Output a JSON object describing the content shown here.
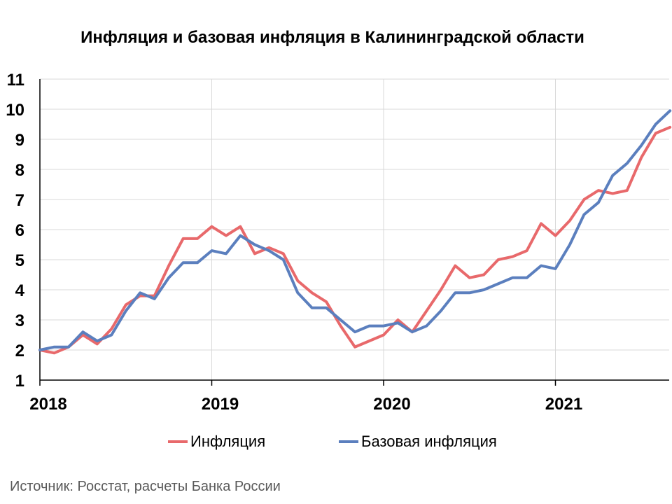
{
  "chart_data": {
    "type": "line",
    "title": "Инфляция и базовая инфляция в Калининградской области",
    "xlabel": "",
    "ylabel": "",
    "ylim": [
      1,
      11
    ],
    "yticks": [
      1,
      2,
      3,
      4,
      5,
      6,
      7,
      8,
      9,
      10,
      11
    ],
    "x_ticks": [
      "2018",
      "2019",
      "2020",
      "2021"
    ],
    "x_start": "2018-01",
    "x": [
      "2018-01",
      "2018-02",
      "2018-03",
      "2018-04",
      "2018-05",
      "2018-06",
      "2018-07",
      "2018-08",
      "2018-09",
      "2018-10",
      "2018-11",
      "2018-12",
      "2019-01",
      "2019-02",
      "2019-03",
      "2019-04",
      "2019-05",
      "2019-06",
      "2019-07",
      "2019-08",
      "2019-09",
      "2019-10",
      "2019-11",
      "2019-12",
      "2020-01",
      "2020-02",
      "2020-03",
      "2020-04",
      "2020-05",
      "2020-06",
      "2020-07",
      "2020-08",
      "2020-09",
      "2020-10",
      "2020-11",
      "2020-12",
      "2021-01",
      "2021-02",
      "2021-03",
      "2021-04",
      "2021-05",
      "2021-06",
      "2021-07",
      "2021-08",
      "2021-09"
    ],
    "grid": true,
    "legend_position": "bottom",
    "series": [
      {
        "name": "Инфляция",
        "color": "#e8696b",
        "values": [
          2.0,
          1.9,
          2.1,
          2.5,
          2.2,
          2.7,
          3.5,
          3.8,
          3.8,
          4.8,
          5.7,
          5.7,
          6.1,
          5.8,
          6.1,
          5.2,
          5.4,
          5.2,
          4.3,
          3.9,
          3.6,
          2.8,
          2.1,
          2.3,
          2.5,
          3.0,
          2.6,
          3.3,
          4.0,
          4.8,
          4.4,
          4.5,
          5.0,
          5.1,
          5.3,
          6.2,
          5.8,
          6.3,
          7.0,
          7.3,
          7.2,
          7.3,
          8.4,
          9.2,
          9.4
        ]
      },
      {
        "name": "Базовая инфляция",
        "color": "#5b7fbe",
        "values": [
          2.0,
          2.1,
          2.1,
          2.6,
          2.3,
          2.5,
          3.3,
          3.9,
          3.7,
          4.4,
          4.9,
          4.9,
          5.3,
          5.2,
          5.8,
          5.5,
          5.3,
          5.0,
          3.9,
          3.4,
          3.4,
          3.0,
          2.6,
          2.8,
          2.8,
          2.9,
          2.6,
          2.8,
          3.3,
          3.9,
          3.9,
          4.0,
          4.2,
          4.4,
          4.4,
          4.8,
          4.7,
          5.5,
          6.5,
          6.9,
          7.8,
          8.2,
          8.8,
          9.5,
          9.95
        ]
      }
    ]
  },
  "footer": {
    "source": "Источник: Росстат, расчеты Банка России"
  },
  "colors": {
    "gridline": "#d9d9d9",
    "axis": "#000000"
  }
}
